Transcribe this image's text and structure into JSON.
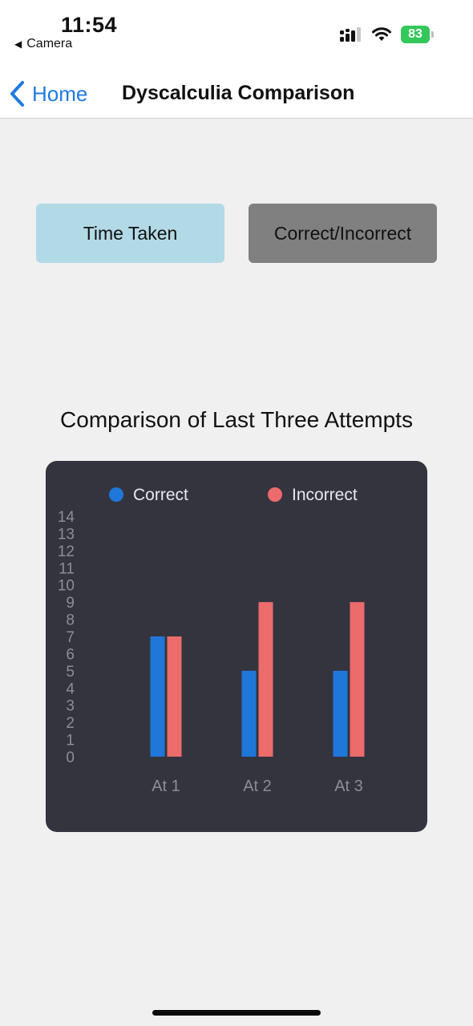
{
  "status_bar": {
    "time": "11:54",
    "back_app": "Camera",
    "battery": "83",
    "icons": [
      "cellular-signal-icon",
      "wifi-icon",
      "battery-icon"
    ]
  },
  "nav": {
    "back_label": "Home",
    "title": "Dyscalculia Comparison"
  },
  "buttons": {
    "time_taken": "Time Taken",
    "correct_incorrect": "Correct/Incorrect"
  },
  "colors": {
    "background": "#f0f0f0",
    "card": "#34343f",
    "accent": "#1f7ae0",
    "time_button": "#b2d9e6",
    "correct_button": "#808080",
    "correct_series": "#1f77d9",
    "incorrect_series": "#ec6b6b"
  },
  "chart_data": {
    "type": "bar",
    "title": "Comparison of Last Three Attempts",
    "categories": [
      "At 1",
      "At 2",
      "At 3"
    ],
    "series": [
      {
        "name": "Correct",
        "color": "#1f77d9",
        "values": [
          7,
          5,
          5
        ]
      },
      {
        "name": "Incorrect",
        "color": "#ec6b6b",
        "values": [
          7,
          9,
          9
        ]
      }
    ],
    "y_ticks": [
      "0",
      "1",
      "2",
      "3",
      "4",
      "5",
      "6",
      "7",
      "8",
      "9",
      "10",
      "11",
      "12",
      "13",
      "14"
    ],
    "ylim": [
      0,
      14
    ],
    "grid": false,
    "legend": "top"
  }
}
